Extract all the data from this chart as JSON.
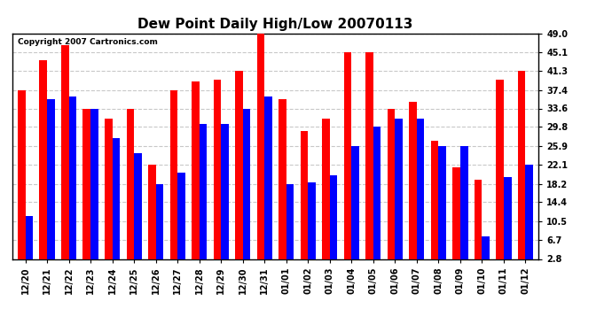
{
  "title": "Dew Point Daily High/Low 20070113",
  "copyright": "Copyright 2007 Cartronics.com",
  "labels": [
    "12/20",
    "12/21",
    "12/22",
    "12/23",
    "12/24",
    "12/25",
    "12/26",
    "12/27",
    "12/28",
    "12/29",
    "12/30",
    "12/31",
    "01/01",
    "01/02",
    "01/03",
    "01/04",
    "01/05",
    "01/06",
    "01/07",
    "01/08",
    "01/09",
    "01/10",
    "01/11",
    "01/12"
  ],
  "highs": [
    37.4,
    43.5,
    46.5,
    33.6,
    31.5,
    33.6,
    22.1,
    37.4,
    39.2,
    39.5,
    41.3,
    49.0,
    35.5,
    29.0,
    31.5,
    45.1,
    45.1,
    33.6,
    35.0,
    27.0,
    21.5,
    19.0,
    39.5,
    41.3
  ],
  "lows": [
    11.5,
    35.5,
    36.0,
    33.6,
    27.5,
    24.5,
    18.2,
    20.5,
    30.5,
    30.5,
    33.6,
    36.0,
    18.2,
    18.5,
    20.0,
    25.9,
    29.8,
    31.5,
    31.5,
    25.9,
    25.9,
    7.5,
    19.5,
    22.1
  ],
  "yticks": [
    2.8,
    6.7,
    10.5,
    14.4,
    18.2,
    22.1,
    25.9,
    29.8,
    33.6,
    37.4,
    41.3,
    45.1,
    49.0
  ],
  "ymin": 2.8,
  "ymax": 49.0,
  "bar_color_high": "#ff0000",
  "bar_color_low": "#0000ff",
  "background_color": "#ffffff",
  "plot_bg_color": "#ffffff",
  "grid_color": "#c8c8c8",
  "title_fontsize": 11,
  "tick_fontsize": 7,
  "copyright_fontsize": 6.5
}
